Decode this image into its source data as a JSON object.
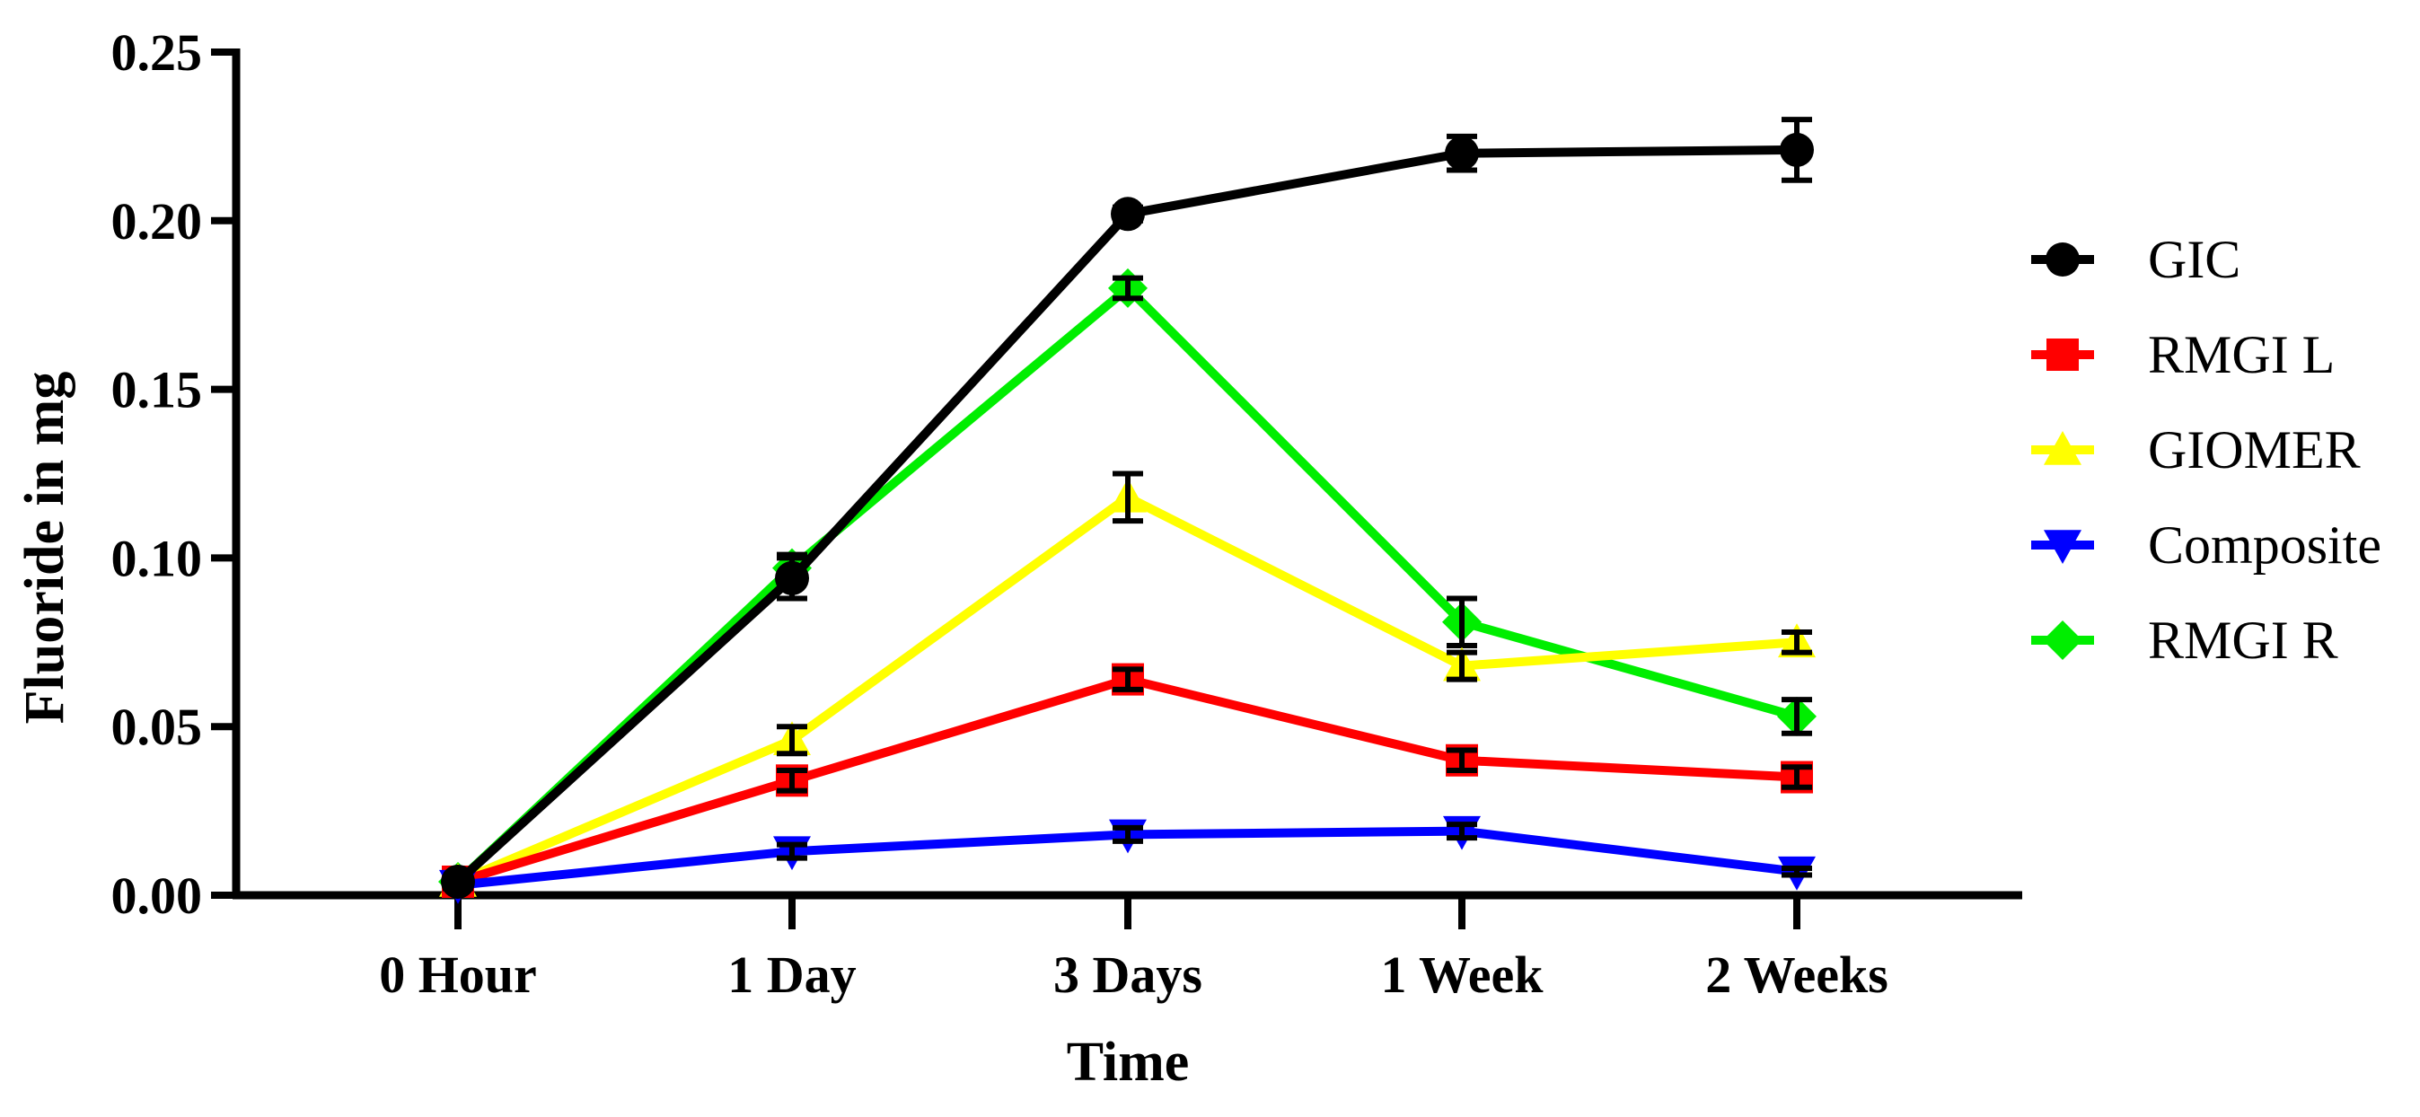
{
  "chart_data": {
    "type": "line",
    "title": "",
    "xlabel": "Time",
    "ylabel": "Fluoride in mg",
    "categories": [
      "0 Hour",
      "1 Day",
      "3 Days",
      "1 Week",
      "2 Weeks"
    ],
    "ylim": [
      0,
      0.25
    ],
    "yticks": [
      0,
      0.05,
      0.1,
      0.15,
      0.2,
      0.25
    ],
    "ytick_labels": [
      "0.00",
      "0.05",
      "0.10",
      "0.15",
      "0.20",
      "0.25"
    ],
    "grid": false,
    "legend_position": "right",
    "series": [
      {
        "name": "RMGI R",
        "color": "#00ee00",
        "marker": "diamond",
        "values": [
          0.004,
          0.097,
          0.18,
          0.081,
          0.053
        ],
        "errors": [
          0.001,
          0.004,
          0.003,
          0.007,
          0.005
        ]
      },
      {
        "name": "GIOMER",
        "color": "#ffff00",
        "marker": "triangle-up",
        "values": [
          0.004,
          0.046,
          0.118,
          0.068,
          0.075
        ],
        "errors": [
          0.001,
          0.004,
          0.007,
          0.004,
          0.003
        ]
      },
      {
        "name": "RMGI L",
        "color": "#ff0000",
        "marker": "square",
        "values": [
          0.004,
          0.034,
          0.064,
          0.04,
          0.035
        ],
        "errors": [
          0.001,
          0.003,
          0.003,
          0.003,
          0.003
        ]
      },
      {
        "name": "Composite",
        "color": "#0000ff",
        "marker": "triangle-down",
        "values": [
          0.003,
          0.013,
          0.018,
          0.019,
          0.007
        ],
        "errors": [
          0.001,
          0.002,
          0.002,
          0.002,
          0.001
        ]
      },
      {
        "name": "GIC",
        "color": "#000000",
        "marker": "circle",
        "values": [
          0.004,
          0.094,
          0.202,
          0.22,
          0.221
        ],
        "errors": [
          0.001,
          0.006,
          0.002,
          0.005,
          0.009
        ]
      }
    ],
    "legend_order": [
      "GIC",
      "RMGI L",
      "GIOMER",
      "Composite",
      "RMGI R"
    ]
  }
}
